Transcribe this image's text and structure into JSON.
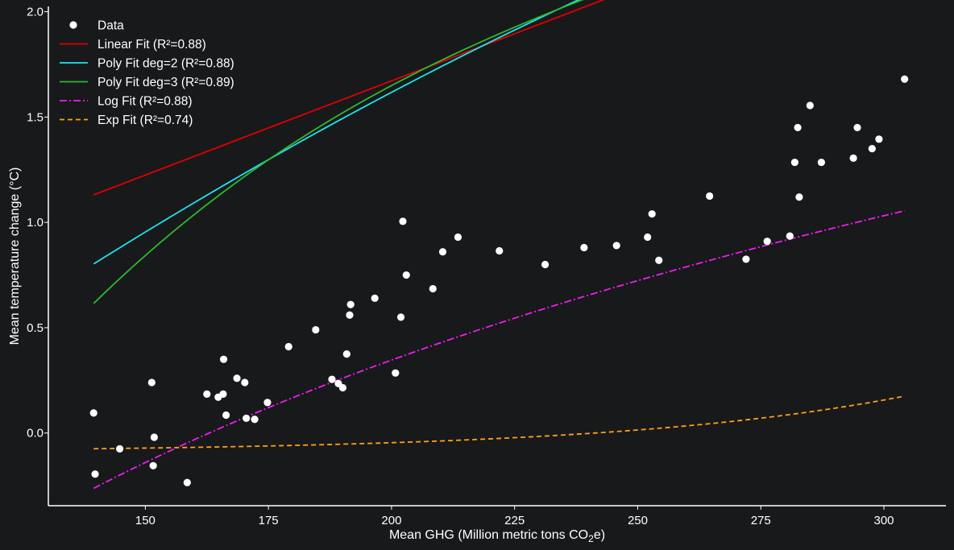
{
  "chart_data": {
    "type": "scatter",
    "title": "",
    "xlabel": "Mean GHG (Million metric tons CO",
    "xlabel_sub": "2",
    "xlabel_tail": "e)",
    "ylabel": "Mean temperature change (°C)",
    "xlim": [
      130.3,
      312.6
    ],
    "ylim": [
      -0.345,
      2.025
    ],
    "xticks": [
      150,
      175,
      200,
      225,
      250,
      275,
      300
    ],
    "yticks": [
      0.0,
      0.5,
      1.0,
      1.5,
      2.0
    ],
    "xtick_labels": [
      "150",
      "175",
      "200",
      "225",
      "250",
      "275",
      "300"
    ],
    "ytick_labels": [
      "0.0",
      "0.5",
      "1.0",
      "1.5",
      "2.0"
    ],
    "grid": false,
    "legend_position": "top-left",
    "background": "#18191b",
    "points": [
      [
        139.5,
        0.095
      ],
      [
        139.8,
        -0.195
      ],
      [
        144.8,
        -0.075
      ],
      [
        151.3,
        0.24
      ],
      [
        151.6,
        -0.155
      ],
      [
        151.8,
        -0.02
      ],
      [
        158.5,
        -0.235
      ],
      [
        162.5,
        0.185
      ],
      [
        164.8,
        0.17
      ],
      [
        165.8,
        0.185
      ],
      [
        165.9,
        0.35
      ],
      [
        166.4,
        0.085
      ],
      [
        168.6,
        0.26
      ],
      [
        170.2,
        0.24
      ],
      [
        170.5,
        0.07
      ],
      [
        172.2,
        0.065
      ],
      [
        174.8,
        0.145
      ],
      [
        179.1,
        0.41
      ],
      [
        184.6,
        0.49
      ],
      [
        187.9,
        0.255
      ],
      [
        189.2,
        0.235
      ],
      [
        190.1,
        0.215
      ],
      [
        190.9,
        0.375
      ],
      [
        191.5,
        0.56
      ],
      [
        191.7,
        0.61
      ],
      [
        196.6,
        0.64
      ],
      [
        200.8,
        0.285
      ],
      [
        201.9,
        0.55
      ],
      [
        202.3,
        1.005
      ],
      [
        203.0,
        0.75
      ],
      [
        208.4,
        0.685
      ],
      [
        210.4,
        0.86
      ],
      [
        213.5,
        0.93
      ],
      [
        221.9,
        0.865
      ],
      [
        231.2,
        0.8
      ],
      [
        239.1,
        0.88
      ],
      [
        245.7,
        0.89
      ],
      [
        252.0,
        0.93
      ],
      [
        252.9,
        1.04
      ],
      [
        254.3,
        0.82
      ],
      [
        264.6,
        1.125
      ],
      [
        272.0,
        0.825
      ],
      [
        276.3,
        0.91
      ],
      [
        280.9,
        0.935
      ],
      [
        281.9,
        1.285
      ],
      [
        282.5,
        1.45
      ],
      [
        282.8,
        1.12
      ],
      [
        285.0,
        1.555
      ],
      [
        287.3,
        1.285
      ],
      [
        293.8,
        1.305
      ],
      [
        294.6,
        1.45
      ],
      [
        297.6,
        1.35
      ],
      [
        299.0,
        1.395
      ],
      [
        304.2,
        1.68
      ]
    ],
    "x_range": [
      139.5,
      304.2
    ],
    "series": [
      {
        "name": "Data",
        "kind": "scatter",
        "color": "#ffffff"
      },
      {
        "name": "Linear Fit (R²=0.88)",
        "kind": "linear",
        "color": "#e00000",
        "dash": "",
        "coef": [
          -0.1176,
          0.008947
        ]
      },
      {
        "name": "Poly Fit deg=2 (R²=0.88)",
        "kind": "poly",
        "color": "#1ce4ee",
        "dash": "",
        "coef": [
          -1.6133,
          0.020006,
          -1.9266e-05
        ]
      },
      {
        "name": "Poly Fit deg=3 (R²=0.89)",
        "kind": "poly",
        "color": "#2fb82f",
        "dash": "",
        "coef": [
          -5.5335,
          0.070887,
          -0.00023218,
          2.8659e-07
        ]
      },
      {
        "name": "Log Fit (R²=0.88)",
        "kind": "log",
        "color": "#ee1eee",
        "dash": "9 3 2 3",
        "coef": [
          -8.6105,
          1.6905
        ]
      },
      {
        "name": "Exp Fit (R²=0.74)",
        "kind": "exp",
        "color": "#ffa01a",
        "dash": "6 4",
        "coef": [
          -0.0903,
          0.01575,
          0.01715
        ]
      }
    ]
  }
}
